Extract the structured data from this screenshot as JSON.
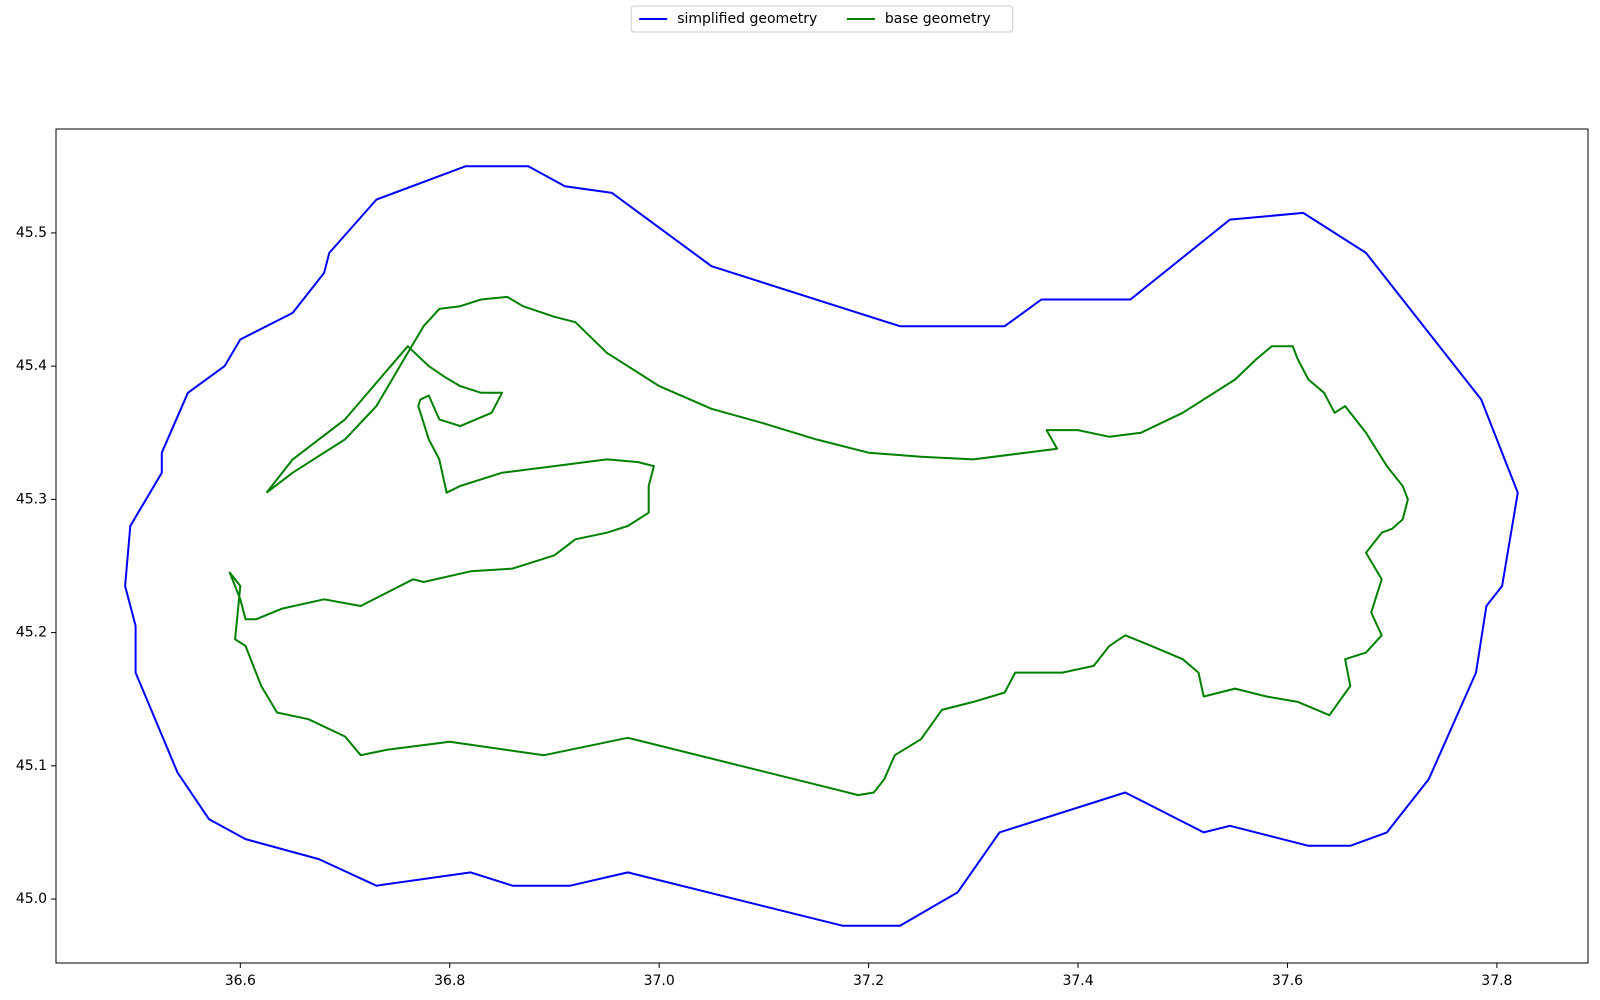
{
  "chart_data": {
    "type": "line",
    "series": [
      {
        "name": "simplified geometry",
        "color": "#0000ff",
        "x": [
          36.49,
          36.495,
          36.525,
          36.525,
          36.55,
          36.585,
          36.6,
          36.65,
          36.68,
          36.685,
          36.73,
          36.815,
          36.875,
          36.91,
          36.955,
          37.05,
          37.23,
          37.33,
          37.365,
          37.45,
          37.545,
          37.615,
          37.675,
          37.785,
          37.82,
          37.805,
          37.79,
          37.78,
          37.735,
          37.695,
          37.66,
          37.62,
          37.545,
          37.52,
          37.445,
          37.325,
          37.285,
          37.23,
          37.175,
          36.97,
          36.915,
          36.86,
          36.82,
          36.73,
          36.675,
          36.605,
          36.57,
          36.54,
          36.5,
          36.5,
          36.49
        ],
        "values": [
          45.235,
          45.28,
          45.32,
          45.335,
          45.38,
          45.4,
          45.42,
          45.44,
          45.47,
          45.485,
          45.525,
          45.55,
          45.55,
          45.535,
          45.53,
          45.475,
          45.43,
          45.43,
          45.45,
          45.45,
          45.51,
          45.515,
          45.485,
          45.375,
          45.305,
          45.235,
          45.22,
          45.17,
          45.09,
          45.05,
          45.04,
          45.04,
          45.055,
          45.05,
          45.08,
          45.05,
          45.005,
          44.98,
          44.98,
          45.02,
          45.01,
          45.01,
          45.02,
          45.01,
          45.03,
          45.045,
          45.06,
          45.095,
          45.17,
          45.205,
          45.235
        ]
      },
      {
        "name": "base geometry",
        "color": "#008000",
        "x": [
          36.625,
          36.65,
          36.7,
          36.73,
          36.76,
          36.775,
          36.79,
          36.81,
          36.83,
          36.855,
          36.87,
          36.9,
          36.92,
          36.95,
          37.0,
          37.05,
          37.1,
          37.15,
          37.2,
          37.25,
          37.3,
          37.35,
          37.38,
          37.37,
          37.4,
          37.43,
          37.46,
          37.5,
          37.55,
          37.57,
          37.585,
          37.605,
          37.61,
          37.62,
          37.635,
          37.645,
          37.655,
          37.675,
          37.695,
          37.71,
          37.715,
          37.71,
          37.7,
          37.69,
          37.675,
          37.69,
          37.68,
          37.69,
          37.675,
          37.655,
          37.66,
          37.64,
          37.61,
          37.58,
          37.55,
          37.52,
          37.515,
          37.5,
          37.47,
          37.445,
          37.43,
          37.415,
          37.385,
          37.34,
          37.33,
          37.3,
          37.27,
          37.25,
          37.225,
          37.215,
          37.205,
          37.19,
          37.17,
          36.97,
          36.89,
          36.8,
          36.74,
          36.715,
          36.7,
          36.665,
          36.635,
          36.62,
          36.605,
          36.595,
          36.6,
          36.59,
          36.6,
          36.605,
          36.615,
          36.64,
          36.68,
          36.715,
          36.74,
          36.765,
          36.775,
          36.82,
          36.86,
          36.9,
          36.92,
          36.95,
          36.97,
          36.99,
          36.99,
          36.995,
          36.98,
          36.95,
          36.9,
          36.85,
          36.81,
          36.797,
          36.79,
          36.78,
          36.77,
          36.772,
          36.78,
          36.79,
          36.81,
          36.84,
          36.85,
          36.83,
          36.81,
          36.795,
          36.78,
          36.76,
          36.7,
          36.65,
          36.625
        ],
        "values": [
          45.305,
          45.32,
          45.345,
          45.37,
          45.41,
          45.43,
          45.443,
          45.445,
          45.45,
          45.452,
          45.445,
          45.437,
          45.433,
          45.41,
          45.385,
          45.368,
          45.357,
          45.345,
          45.335,
          45.332,
          45.33,
          45.335,
          45.338,
          45.352,
          45.352,
          45.347,
          45.35,
          45.365,
          45.39,
          45.405,
          45.415,
          45.415,
          45.405,
          45.39,
          45.38,
          45.365,
          45.37,
          45.35,
          45.325,
          45.31,
          45.3,
          45.285,
          45.278,
          45.275,
          45.26,
          45.24,
          45.215,
          45.198,
          45.185,
          45.18,
          45.16,
          45.138,
          45.148,
          45.152,
          45.158,
          45.152,
          45.17,
          45.18,
          45.19,
          45.198,
          45.19,
          45.175,
          45.17,
          45.17,
          45.155,
          45.148,
          45.142,
          45.12,
          45.108,
          45.09,
          45.08,
          45.078,
          45.082,
          45.121,
          45.108,
          45.118,
          45.112,
          45.108,
          45.122,
          45.135,
          45.14,
          45.16,
          45.19,
          45.195,
          45.235,
          45.245,
          45.225,
          45.21,
          45.21,
          45.218,
          45.225,
          45.22,
          45.23,
          45.24,
          45.238,
          45.246,
          45.248,
          45.258,
          45.27,
          45.275,
          45.28,
          45.29,
          45.31,
          45.325,
          45.328,
          45.33,
          45.325,
          45.32,
          45.31,
          45.305,
          45.33,
          45.345,
          45.37,
          45.375,
          45.378,
          45.36,
          45.355,
          45.365,
          45.38,
          45.38,
          45.385,
          45.392,
          45.4,
          45.415,
          45.36,
          45.33,
          45.305
        ]
      }
    ],
    "xlim": [
      36.424,
      37.887
    ],
    "ylim": [
      44.952,
      45.578
    ],
    "xticks": [
      36.6,
      36.8,
      {
        "value": 37,
        "label": "37.0"
      },
      37.2,
      37.4,
      37.6,
      37.8
    ],
    "yticks": [
      {
        "value": 45,
        "label": "45.0"
      },
      45.1,
      45.2,
      45.3,
      45.4,
      45.5
    ],
    "legend": "upper center",
    "grid": false
  }
}
